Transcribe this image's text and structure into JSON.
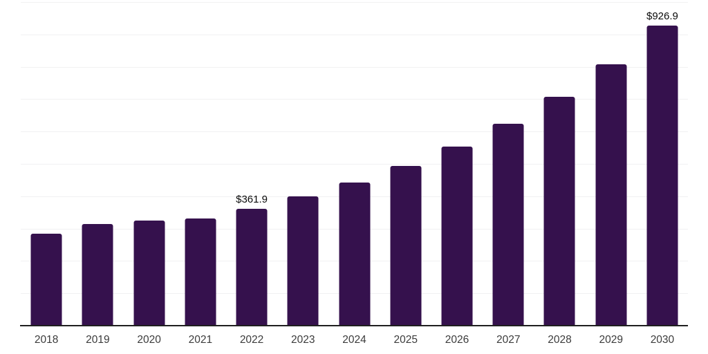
{
  "chart_data": {
    "type": "bar",
    "title": "",
    "xlabel": "",
    "ylabel": "",
    "categories": [
      "2018",
      "2019",
      "2020",
      "2021",
      "2022",
      "2023",
      "2024",
      "2025",
      "2026",
      "2027",
      "2028",
      "2029",
      "2030"
    ],
    "values": [
      285,
      315,
      324,
      331,
      361.9,
      399,
      443,
      494,
      553,
      625,
      707,
      808,
      926.9
    ],
    "data_labels": [
      "",
      "",
      "",
      "",
      "$361.9",
      "",
      "",
      "",
      "",
      "",
      "",
      "",
      "$926.9"
    ],
    "ylim": [
      0,
      1000
    ],
    "grid_step": 100,
    "grid": "horizontal-only",
    "legend_position": "none",
    "y_axis_tick_labels": "none"
  },
  "colors": {
    "bar": "#35114d",
    "gridline": "#f1f1f2",
    "axis_line": "#1f1f1f",
    "tick_text": "#3b3b3b",
    "data_label_text": "#0a0a0a",
    "background": "#ffffff"
  }
}
